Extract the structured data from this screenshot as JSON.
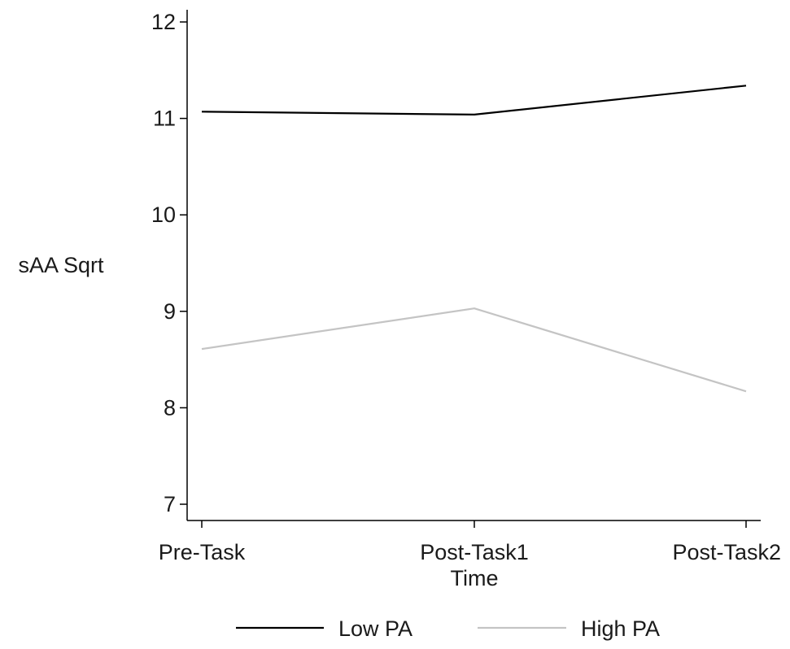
{
  "chart_data": {
    "type": "line",
    "title": "",
    "xlabel": "Time",
    "ylabel": "sAA Sqrt",
    "categories": [
      "Pre-Task",
      "Post-Task1",
      "Post-Task2"
    ],
    "ylim": [
      7,
      12
    ],
    "yticks": [
      7,
      8,
      9,
      10,
      11,
      12
    ],
    "grid": false,
    "legend_position": "bottom",
    "series": [
      {
        "name": "Low PA",
        "values": [
          11.07,
          11.04,
          11.34
        ],
        "color": "#000000"
      },
      {
        "name": "High PA",
        "values": [
          8.61,
          9.03,
          8.17
        ],
        "color": "#c4c4c4"
      }
    ]
  }
}
